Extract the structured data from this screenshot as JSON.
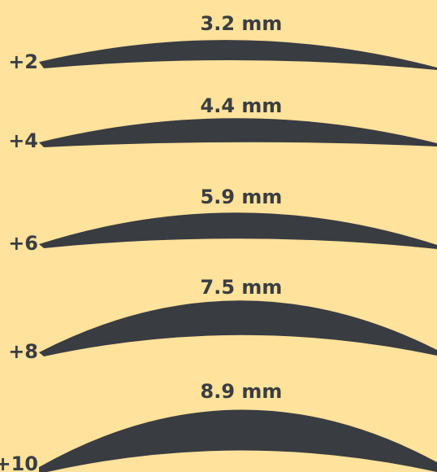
{
  "colors": {
    "background": "#ffe29b",
    "lens": "#393c41",
    "text": "#3a3d42"
  },
  "lenses": [
    {
      "power": "+2",
      "thickness": "3.2 mm"
    },
    {
      "power": "+4",
      "thickness": "4.4 mm"
    },
    {
      "power": "+6",
      "thickness": "5.9 mm"
    },
    {
      "power": "+8",
      "thickness": "7.5 mm"
    },
    {
      "power": "+10",
      "thickness": "8.9 mm"
    }
  ]
}
